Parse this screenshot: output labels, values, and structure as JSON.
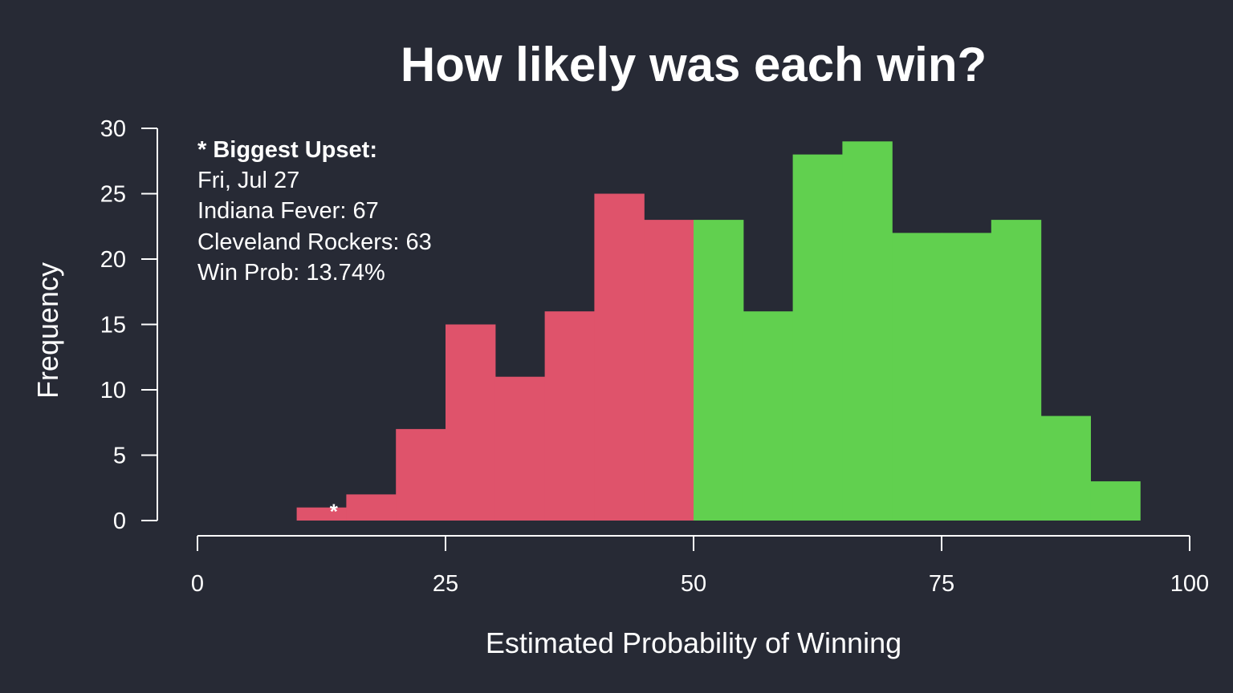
{
  "chart_data": {
    "type": "bar",
    "title": "How likely was each win?",
    "xlabel": "Estimated Probability of Winning",
    "ylabel": "Frequency",
    "xlim": [
      0,
      100
    ],
    "ylim": [
      0,
      30
    ],
    "x_ticks": [
      0,
      25,
      50,
      75,
      100
    ],
    "y_ticks": [
      0,
      5,
      10,
      15,
      20,
      25,
      30
    ],
    "bin_width": 5,
    "bins": [
      {
        "start": 10,
        "end": 15,
        "count": 1
      },
      {
        "start": 15,
        "end": 20,
        "count": 2
      },
      {
        "start": 20,
        "end": 25,
        "count": 7
      },
      {
        "start": 25,
        "end": 30,
        "count": 15
      },
      {
        "start": 30,
        "end": 35,
        "count": 11
      },
      {
        "start": 35,
        "end": 40,
        "count": 16
      },
      {
        "start": 40,
        "end": 45,
        "count": 25
      },
      {
        "start": 45,
        "end": 50,
        "count": 23
      },
      {
        "start": 50,
        "end": 55,
        "count": 23
      },
      {
        "start": 55,
        "end": 60,
        "count": 16
      },
      {
        "start": 60,
        "end": 65,
        "count": 28
      },
      {
        "start": 65,
        "end": 70,
        "count": 29
      },
      {
        "start": 70,
        "end": 75,
        "count": 22
      },
      {
        "start": 75,
        "end": 80,
        "count": 22
      },
      {
        "start": 80,
        "end": 85,
        "count": 23
      },
      {
        "start": 85,
        "end": 90,
        "count": 8
      },
      {
        "start": 90,
        "end": 95,
        "count": 3
      }
    ],
    "colors": {
      "below_50": "#df536b",
      "above_50": "#61d04f",
      "background": "#272a35",
      "text": "#ffffff"
    },
    "marker": {
      "symbol": "*",
      "x": 13.74
    },
    "annotation": {
      "heading": "* Biggest Upset:",
      "lines": [
        "Fri, Jul 27",
        "Indiana Fever: 67",
        "Cleveland Rockers: 63",
        "Win Prob: 13.74%"
      ]
    }
  }
}
